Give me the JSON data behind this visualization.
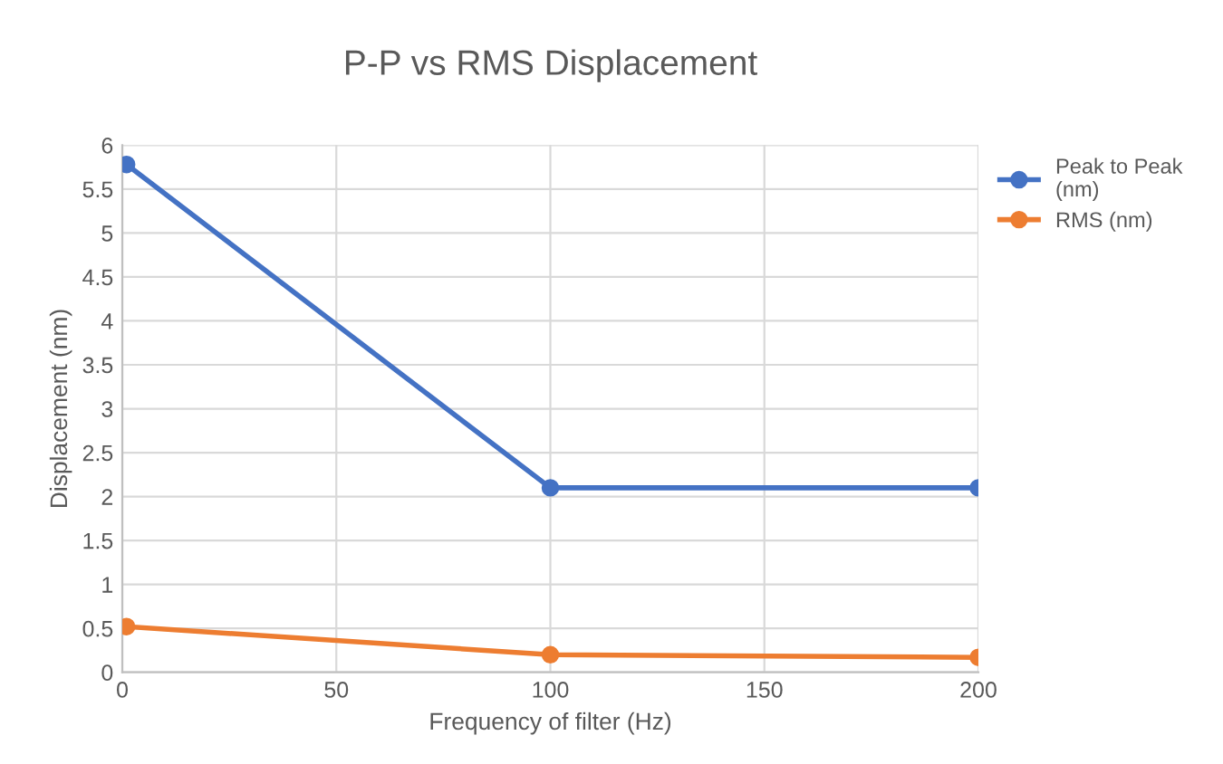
{
  "chart_data": {
    "type": "line",
    "title": "P-P vs RMS Displacement",
    "xlabel": "Frequency of filter (Hz)",
    "ylabel": "Displacement (nm)",
    "x": [
      1,
      100,
      200
    ],
    "series": [
      {
        "name": "Peak to Peak (nm)",
        "color": "#4472c4",
        "values": [
          5.78,
          2.1,
          2.1
        ]
      },
      {
        "name": "RMS (nm)",
        "color": "#ed7d31",
        "values": [
          0.52,
          0.2,
          0.17
        ]
      }
    ],
    "xlim": [
      0,
      200
    ],
    "xticks": [
      0,
      50,
      100,
      150,
      200
    ],
    "ylim": [
      0,
      6
    ],
    "yticks": [
      0,
      0.5,
      1,
      1.5,
      2,
      2.5,
      3,
      3.5,
      4,
      4.5,
      5,
      5.5,
      6
    ],
    "grid": true,
    "legend": "right",
    "marker": "circle",
    "line_style": "solid"
  }
}
